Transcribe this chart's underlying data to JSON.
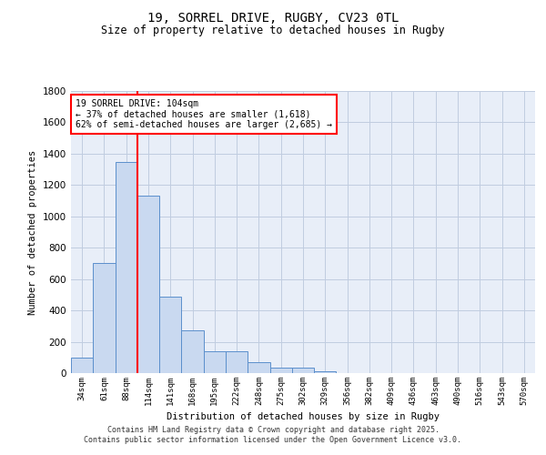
{
  "title_line1": "19, SORREL DRIVE, RUGBY, CV23 0TL",
  "title_line2": "Size of property relative to detached houses in Rugby",
  "xlabel": "Distribution of detached houses by size in Rugby",
  "ylabel": "Number of detached properties",
  "bar_labels": [
    "34sqm",
    "61sqm",
    "88sqm",
    "114sqm",
    "141sqm",
    "168sqm",
    "195sqm",
    "222sqm",
    "248sqm",
    "275sqm",
    "302sqm",
    "329sqm",
    "356sqm",
    "382sqm",
    "409sqm",
    "436sqm",
    "463sqm",
    "490sqm",
    "516sqm",
    "543sqm",
    "570sqm"
  ],
  "bar_values": [
    100,
    700,
    1350,
    1130,
    490,
    275,
    140,
    140,
    68,
    35,
    35,
    10,
    0,
    0,
    0,
    0,
    0,
    0,
    0,
    0,
    0
  ],
  "bar_color": "#c9d9f0",
  "bar_edge_color": "#5b8fcc",
  "ylim": [
    0,
    1800
  ],
  "yticks": [
    0,
    200,
    400,
    600,
    800,
    1000,
    1200,
    1400,
    1600,
    1800
  ],
  "vline_color": "red",
  "annotation_text": "19 SORREL DRIVE: 104sqm\n← 37% of detached houses are smaller (1,618)\n62% of semi-detached houses are larger (2,685) →",
  "footer_line1": "Contains HM Land Registry data © Crown copyright and database right 2025.",
  "footer_line2": "Contains public sector information licensed under the Open Government Licence v3.0.",
  "bg_color": "#e8eef8",
  "grid_color": "#c0cce0"
}
